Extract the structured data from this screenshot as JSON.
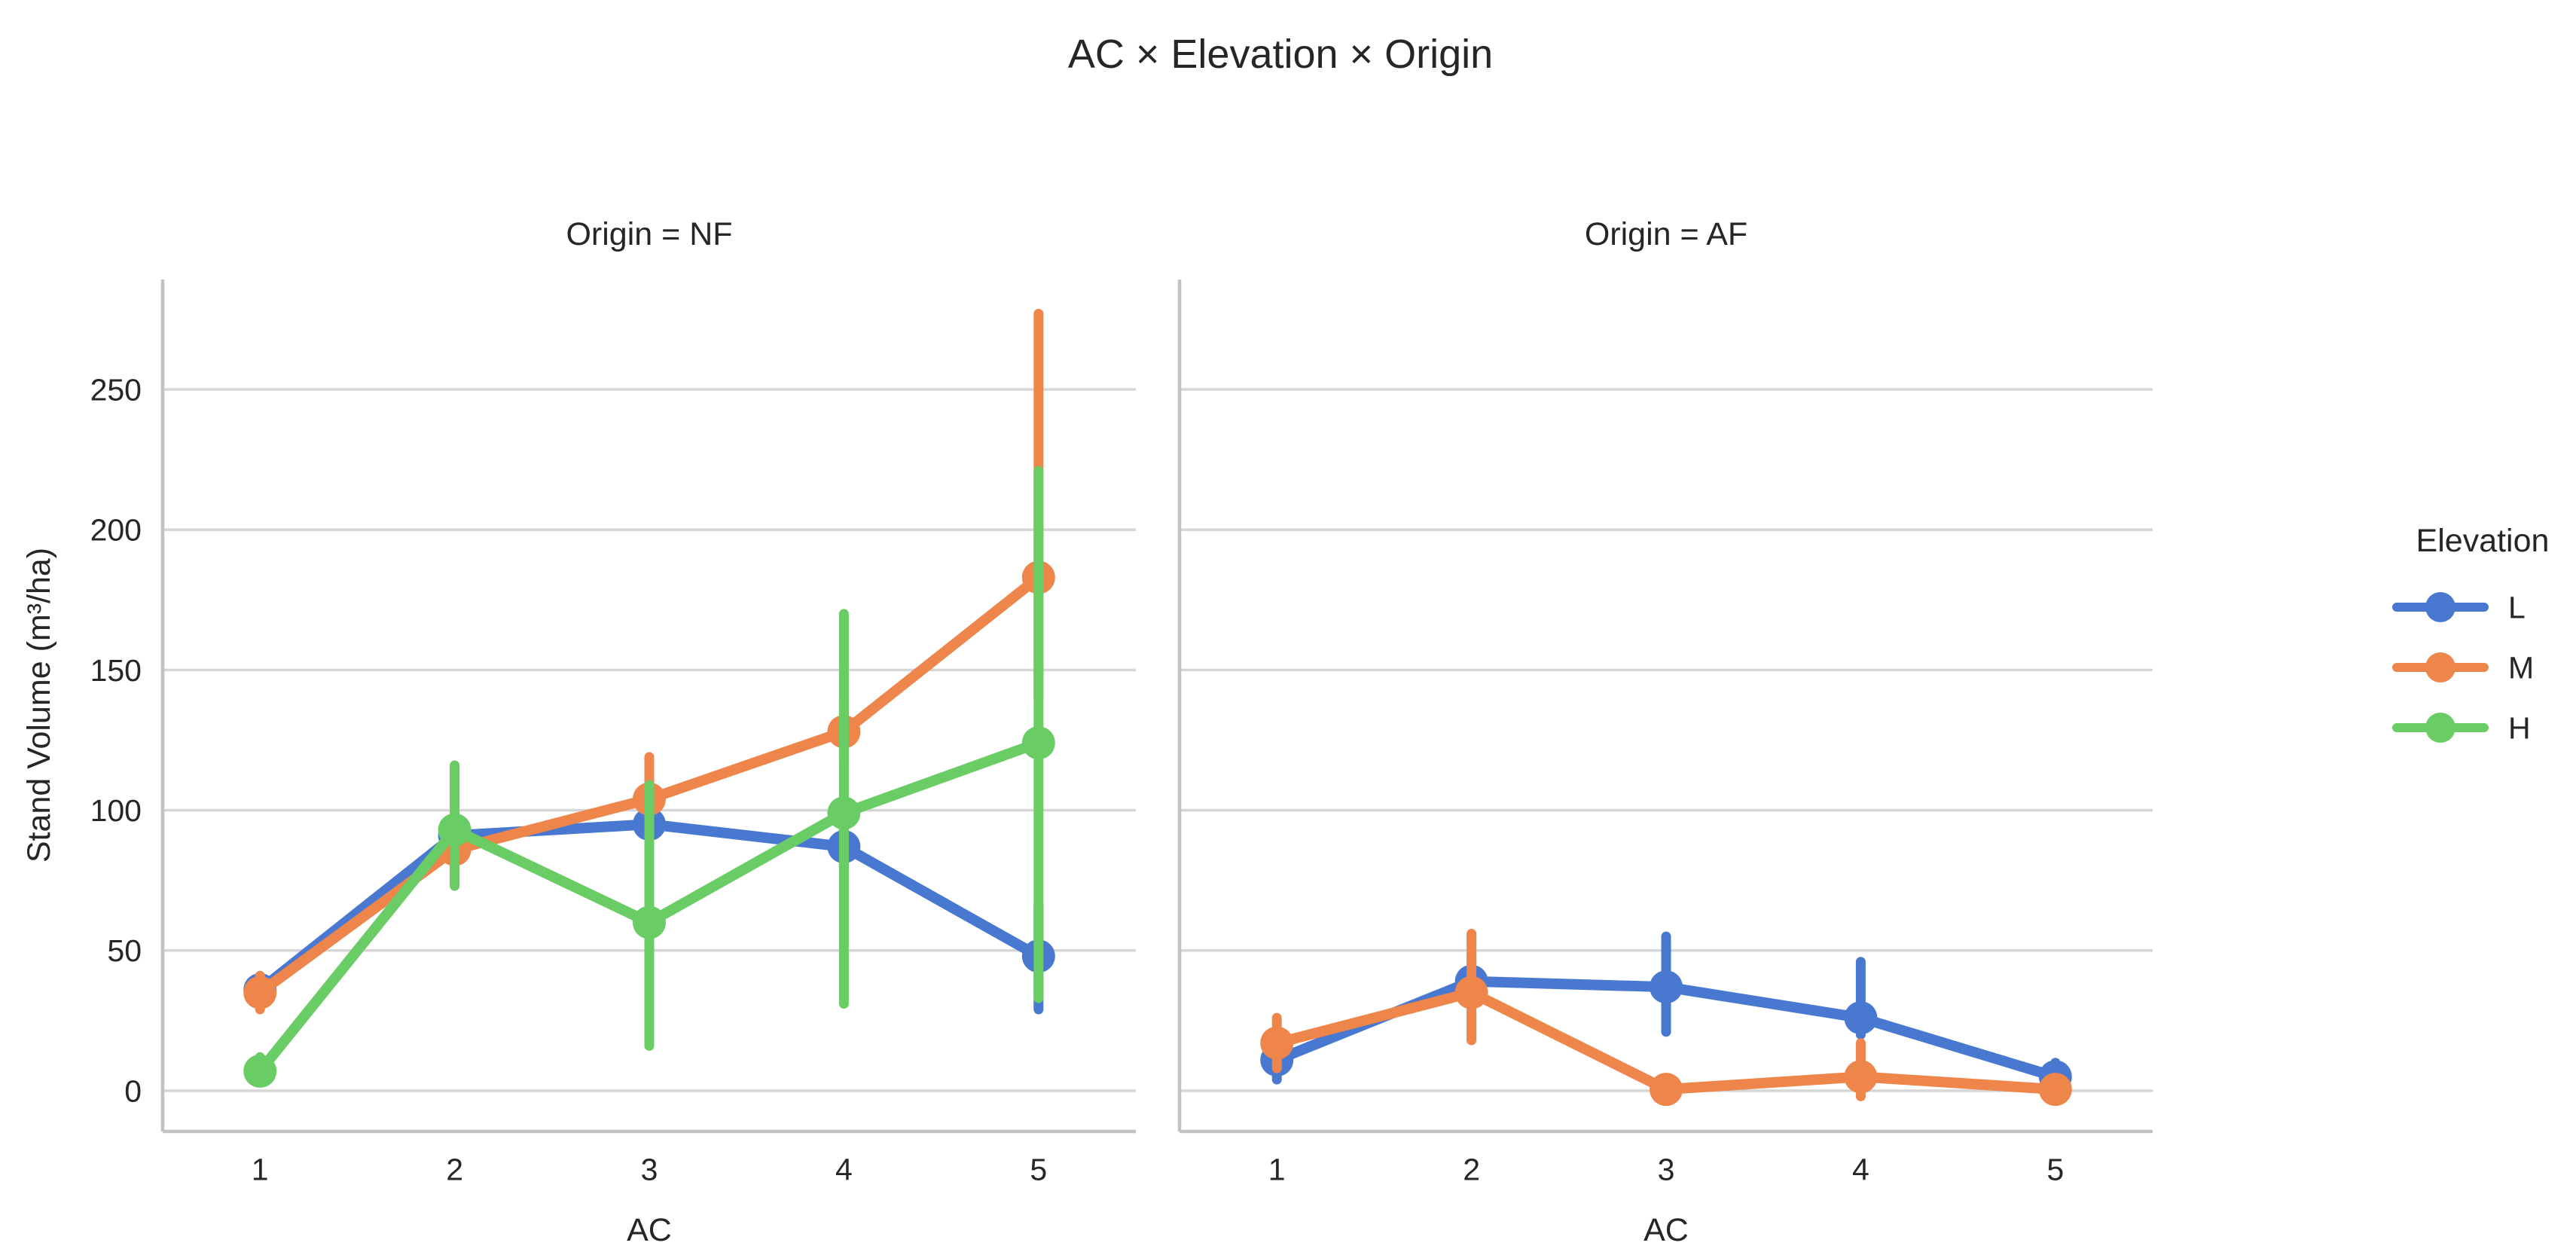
{
  "figure": {
    "title": "AC × Elevation × Origin"
  },
  "axes": {
    "xlabel": "AC",
    "ylabel": "Stand Volume (m³/ha)",
    "xticklabels": [
      "1",
      "2",
      "3",
      "4",
      "5"
    ],
    "yticklabels": [
      "0",
      "50",
      "100",
      "150",
      "200",
      "250"
    ]
  },
  "legend": {
    "title": "Elevation",
    "entries": [
      {
        "label": "L",
        "color": "#4878D0"
      },
      {
        "label": "M",
        "color": "#EE854A"
      },
      {
        "label": "H",
        "color": "#6ACC64"
      }
    ]
  },
  "style": {
    "background": "#ffffff",
    "grid_color": "#d6d6d6",
    "spine_color": "#c2c2c2",
    "text_color": "#262626",
    "blue": "#4878D0",
    "orange": "#EE854A",
    "green": "#6ACC64"
  },
  "chart_data": {
    "type": "line",
    "title": "AC × Elevation × Origin",
    "xlabel": "AC",
    "ylabel": "Stand Volume (m³/ha)",
    "x": [
      1,
      2,
      3,
      4,
      5
    ],
    "yticks": [
      0,
      50,
      100,
      150,
      200,
      250
    ],
    "ylim": [
      -14,
      290
    ],
    "grid": true,
    "legend_title": "Elevation",
    "legend_position": "right",
    "marker": "point-with-ci",
    "panels": [
      {
        "facet_label": "Origin = NF",
        "series": [
          {
            "name": "L",
            "color": "#4878D0",
            "values": [
              36,
              91,
              95,
              87,
              48
            ],
            "ci_low": [
              31,
              85,
              89,
              80,
              29
            ],
            "ci_high": [
              41,
              97,
              101,
              94,
              66
            ]
          },
          {
            "name": "M",
            "color": "#EE854A",
            "values": [
              35,
              86,
              104,
              128,
              183
            ],
            "ci_low": [
              29,
              79,
              90,
              117,
              140
            ],
            "ci_high": [
              41,
              93,
              119,
              139,
              277
            ]
          },
          {
            "name": "H",
            "color": "#6ACC64",
            "values": [
              7,
              93,
              60,
              99,
              124
            ],
            "ci_low": [
              3,
              73,
              16,
              31,
              33
            ],
            "ci_high": [
              12,
              116,
              109,
              170,
              221
            ]
          }
        ]
      },
      {
        "facet_label": "Origin = AF",
        "series": [
          {
            "name": "L",
            "color": "#4878D0",
            "values": [
              11,
              39,
              37,
              26,
              5
            ],
            "ci_low": [
              4,
              33,
              21,
              20,
              2
            ],
            "ci_high": [
              15,
              46,
              55,
              46,
              10
            ]
          },
          {
            "name": "M",
            "color": "#EE854A",
            "values": [
              17,
              35,
              0.5,
              5,
              0.5
            ],
            "ci_low": [
              8,
              18,
              -1,
              -2,
              -3
            ],
            "ci_high": [
              26,
              56,
              2,
              17,
              3
            ]
          }
        ]
      }
    ]
  }
}
